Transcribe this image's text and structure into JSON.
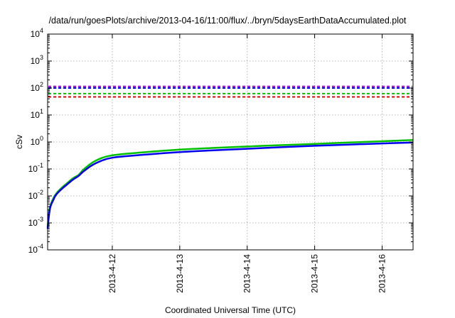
{
  "chart_data": {
    "type": "line",
    "title": "/data/run/goesPlots/archive/2013-04-16/11:00/flux/../bryn/5daysEarthDataAccumulated.plot",
    "xlabel": "Coordinated Universal Time (UTC)",
    "ylabel": "cSv",
    "y_scale": "log",
    "ylim": [
      0.0001,
      10000
    ],
    "xlim": [
      "2013-04-11 01:00",
      "2013-04-16 11:00"
    ],
    "x_ticks": [
      "2013-4-12",
      "2013-4-13",
      "2013-4-14",
      "2013-4-15",
      "2013-4-16"
    ],
    "y_ticks": [
      {
        "base": "10",
        "exp": "-4",
        "value": 0.0001
      },
      {
        "base": "10",
        "exp": "-3",
        "value": 0.001
      },
      {
        "base": "10",
        "exp": "-2",
        "value": 0.01
      },
      {
        "base": "10",
        "exp": "-1",
        "value": 0.1
      },
      {
        "base": "10",
        "exp": "0",
        "value": 1
      },
      {
        "base": "10",
        "exp": "1",
        "value": 10
      },
      {
        "base": "10",
        "exp": "2",
        "value": 100
      },
      {
        "base": "10",
        "exp": "3",
        "value": 1000
      },
      {
        "base": "10",
        "exp": "4",
        "value": 10000
      }
    ],
    "grid": true,
    "threshold_lines": [
      {
        "value": 115,
        "color": "#9400d3",
        "style": "dashed"
      },
      {
        "value": 100,
        "color": "#0000ee",
        "style": "dashed"
      },
      {
        "value": 62,
        "color": "#00c000",
        "style": "dashed"
      },
      {
        "value": 47,
        "color": "#e00000",
        "style": "dashed"
      }
    ],
    "series": [
      {
        "color": "#00c000",
        "x": [
          "2013-04-11 01:00",
          "2013-04-11 01:30",
          "2013-04-11 02:00",
          "2013-04-11 03:00",
          "2013-04-11 04:00",
          "2013-04-11 06:00",
          "2013-04-11 08:00",
          "2013-04-11 10:00",
          "2013-04-11 12:00",
          "2013-04-11 14:00",
          "2013-04-11 18:00",
          "2013-04-12 00:00",
          "2013-04-12 12:00",
          "2013-04-13 00:00",
          "2013-04-13 12:00",
          "2013-04-14 00:00",
          "2013-04-14 12:00",
          "2013-04-15 00:00",
          "2013-04-15 12:00",
          "2013-04-16 00:00",
          "2013-04-16 11:00"
        ],
        "y": [
          0.0007,
          0.0025,
          0.0045,
          0.008,
          0.012,
          0.02,
          0.03,
          0.045,
          0.06,
          0.1,
          0.2,
          0.32,
          0.42,
          0.52,
          0.6,
          0.68,
          0.76,
          0.85,
          0.95,
          1.06,
          1.18
        ]
      },
      {
        "color": "#0000ee",
        "x": [
          "2013-04-11 01:00",
          "2013-04-11 01:30",
          "2013-04-11 02:00",
          "2013-04-11 03:00",
          "2013-04-11 04:00",
          "2013-04-11 06:00",
          "2013-04-11 08:00",
          "2013-04-11 10:00",
          "2013-04-11 12:00",
          "2013-04-11 14:00",
          "2013-04-11 18:00",
          "2013-04-12 00:00",
          "2013-04-12 12:00",
          "2013-04-13 00:00",
          "2013-04-13 12:00",
          "2013-04-14 00:00",
          "2013-04-14 12:00",
          "2013-04-15 00:00",
          "2013-04-15 12:00",
          "2013-04-16 00:00",
          "2013-04-16 11:00"
        ],
        "y": [
          0.0006,
          0.002,
          0.004,
          0.007,
          0.011,
          0.018,
          0.027,
          0.04,
          0.055,
          0.085,
          0.16,
          0.26,
          0.34,
          0.42,
          0.49,
          0.56,
          0.64,
          0.72,
          0.8,
          0.88,
          0.96
        ]
      }
    ]
  }
}
